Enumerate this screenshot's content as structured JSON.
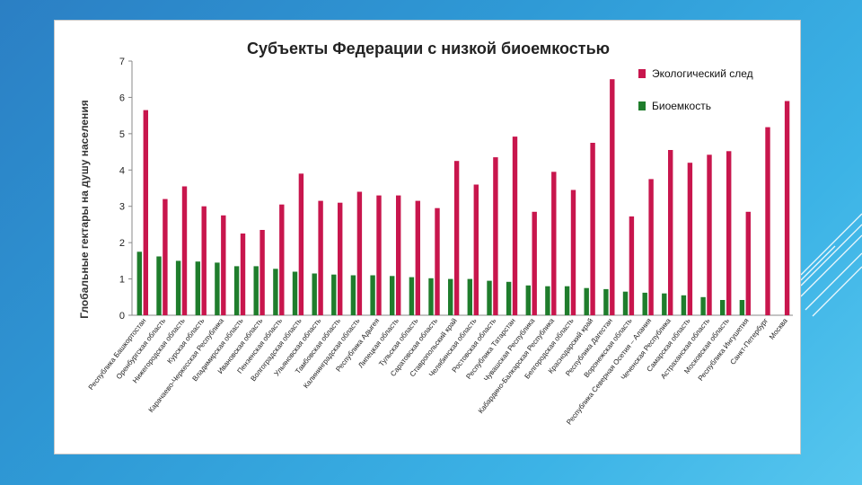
{
  "slide": {
    "background_colors": [
      "#2b7fc4",
      "#56c6ee"
    ],
    "accent_line_color": "#ffffff"
  },
  "chart_data": {
    "type": "bar",
    "title": "Субъекты Федерации с низкой биоемкостью",
    "xlabel": "",
    "ylabel": "Глобальные гектары на душу населения",
    "ylim": [
      0,
      7
    ],
    "yticks": [
      0,
      1,
      2,
      3,
      4,
      5,
      6,
      7
    ],
    "grid": false,
    "legend_position": "top-right",
    "categories": [
      "Республика Башкортостан",
      "Оренбургская область",
      "Нижегородская область",
      "Курская область",
      "Карачаево-Черкесская Республика",
      "Владимирская область",
      "Ивановская область",
      "Пензенская область",
      "Волгоградская область",
      "Ульяновская область",
      "Тамбовская область",
      "Калининградская область",
      "Республика Адыгея",
      "Липецкая область",
      "Тульская область",
      "Саратовская область",
      "Ставропольский край",
      "Челябинская область",
      "Ростовская область",
      "Республика Татарстан",
      "Чувашская Республика",
      "Кабардино-Балкарская Республика",
      "Белгородская область",
      "Краснодарский край",
      "Республика Дагестан",
      "Воронежская область",
      "Республика Северная Осетия – Алания",
      "Чеченская Республика",
      "Самарская область",
      "Астраханская область",
      "Московская область",
      "Республика Ингушетия",
      "Санкт-Петербург",
      "Москва"
    ],
    "series": [
      {
        "name": "Экологический след",
        "color": "#c8164d",
        "values": [
          5.65,
          3.2,
          3.55,
          3.0,
          2.75,
          2.25,
          2.35,
          3.05,
          3.9,
          3.15,
          3.1,
          3.4,
          3.3,
          3.3,
          3.15,
          2.95,
          4.25,
          3.6,
          4.35,
          4.92,
          2.85,
          3.95,
          3.45,
          4.75,
          6.5,
          2.72,
          3.75,
          4.55,
          4.2,
          4.42,
          4.52,
          2.85,
          5.18,
          5.9
        ]
      },
      {
        "name": "Биоемкость",
        "color": "#1f7d2c",
        "values": [
          1.75,
          1.62,
          1.5,
          1.48,
          1.45,
          1.35,
          1.35,
          1.28,
          1.2,
          1.15,
          1.12,
          1.1,
          1.1,
          1.08,
          1.05,
          1.02,
          1.0,
          1.0,
          0.95,
          0.92,
          0.82,
          0.8,
          0.8,
          0.75,
          0.72,
          0.65,
          0.62,
          0.6,
          0.55,
          0.5,
          0.42,
          0.42,
          null,
          null
        ]
      }
    ]
  }
}
